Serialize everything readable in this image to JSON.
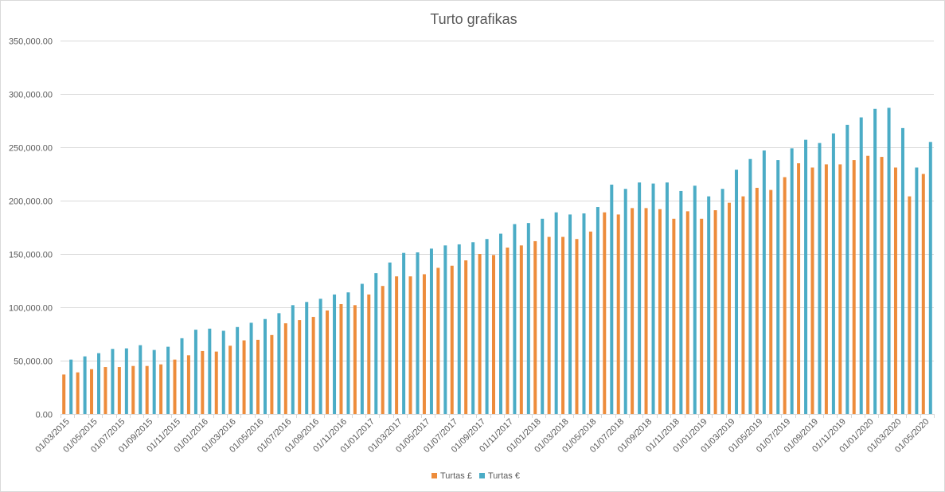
{
  "chart_data": {
    "type": "bar",
    "title": "Turto grafikas",
    "xlabel": "",
    "ylabel": "",
    "ylim": [
      0,
      350000
    ],
    "yticks": [
      0,
      50000,
      100000,
      150000,
      200000,
      250000,
      300000,
      350000
    ],
    "ytick_labels": [
      "0.00",
      "50,000.00",
      "100,000.00",
      "150,000.00",
      "200,000.00",
      "250,000.00",
      "300,000.00",
      "350,000.00"
    ],
    "grid": true,
    "legend_position": "bottom",
    "categories": [
      "01/03/2015",
      "01/04/2015",
      "01/05/2015",
      "01/06/2015",
      "01/07/2015",
      "01/08/2015",
      "01/09/2015",
      "01/10/2015",
      "01/11/2015",
      "01/12/2015",
      "01/01/2016",
      "01/02/2016",
      "01/03/2016",
      "01/04/2016",
      "01/05/2016",
      "01/06/2016",
      "01/07/2016",
      "01/08/2016",
      "01/09/2016",
      "01/10/2016",
      "01/11/2016",
      "01/12/2016",
      "01/01/2017",
      "01/02/2017",
      "01/03/2017",
      "01/04/2017",
      "01/05/2017",
      "01/06/2017",
      "01/07/2017",
      "01/08/2017",
      "01/09/2017",
      "01/10/2017",
      "01/11/2017",
      "01/12/2017",
      "01/01/2018",
      "01/02/2018",
      "01/03/2018",
      "01/04/2018",
      "01/05/2018",
      "01/06/2018",
      "01/07/2018",
      "01/08/2018",
      "01/09/2018",
      "01/10/2018",
      "01/11/2018",
      "01/12/2018",
      "01/01/2019",
      "01/02/2019",
      "01/03/2019",
      "01/04/2019",
      "01/05/2019",
      "01/06/2019",
      "01/07/2019",
      "01/08/2019",
      "01/09/2019",
      "01/10/2019",
      "01/11/2019",
      "01/12/2019",
      "01/01/2020",
      "01/02/2020",
      "01/03/2020",
      "01/04/2020",
      "01/05/2020"
    ],
    "x_tick_labels": [
      "01/03/2015",
      "01/05/2015",
      "01/07/2015",
      "01/09/2015",
      "01/11/2015",
      "01/01/2016",
      "01/03/2016",
      "01/05/2016",
      "01/07/2016",
      "01/09/2016",
      "01/11/2016",
      "01/01/2017",
      "01/03/2017",
      "01/05/2017",
      "01/07/2017",
      "01/09/2017",
      "01/11/2017",
      "01/01/2018",
      "01/03/2018",
      "01/05/2018",
      "01/07/2018",
      "01/09/2018",
      "01/11/2018",
      "01/01/2019",
      "01/03/2019",
      "01/05/2019",
      "01/07/2019",
      "01/09/2019",
      "01/11/2019",
      "01/01/2020",
      "01/03/2020",
      "01/05/2020"
    ],
    "series": [
      {
        "name": "Turtas £",
        "color": "#ED8C3B",
        "values": [
          37000,
          39000,
          42000,
          44000,
          44000,
          45000,
          45000,
          46500,
          51000,
          55000,
          59000,
          58500,
          64000,
          69000,
          69500,
          74000,
          85000,
          88000,
          91000,
          97000,
          103000,
          102000,
          112000,
          120000,
          129000,
          129000,
          131000,
          137000,
          139000,
          144000,
          150000,
          149000,
          156000,
          158000,
          162000,
          166000,
          166000,
          164000,
          171000,
          189000,
          187000,
          193000,
          193000,
          192000,
          183000,
          190000,
          183000,
          191000,
          198000,
          204000,
          212000,
          210000,
          222000,
          235000,
          231000,
          234000,
          234000,
          238000,
          242000,
          241000,
          231000,
          204000,
          225000
        ]
      },
      {
        "name": "Turtas €",
        "color": "#4BACC6",
        "values": [
          51000,
          54000,
          57000,
          61000,
          61500,
          64500,
          60000,
          63000,
          71000,
          79000,
          80000,
          78000,
          81500,
          85500,
          89000,
          94500,
          102000,
          105000,
          108000,
          112000,
          114000,
          122000,
          132000,
          142000,
          151000,
          151500,
          155000,
          158000,
          159000,
          161000,
          164000,
          169000,
          178000,
          179000,
          183000,
          189000,
          187000,
          188000,
          194000,
          215000,
          211000,
          217000,
          216000,
          217000,
          209000,
          214000,
          204000,
          211000,
          229000,
          239000,
          247000,
          238000,
          249000,
          257000,
          254000,
          263000,
          271000,
          278000,
          286000,
          287000,
          268000,
          231000,
          255000
        ]
      }
    ]
  }
}
